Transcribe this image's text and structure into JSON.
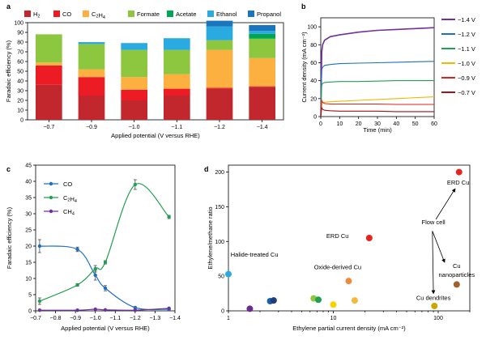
{
  "chart_data": [
    {
      "panel": "a",
      "type": "bar",
      "stacked": true,
      "categories": [
        "−0.7",
        "−0.9",
        "−1.0",
        "−1.1",
        "−1.2",
        "−1.4"
      ],
      "xlabel": "Applied potential (V versus RHE)",
      "ylabel": "Faradaic efficiency (%)",
      "ylim": [
        0,
        100
      ],
      "yticks": [
        0,
        10,
        20,
        30,
        40,
        50,
        60,
        70,
        80,
        90,
        100
      ],
      "legend_position": "top",
      "series": [
        {
          "name": "H",
          "sub": "2",
          "color": "#c1272d",
          "values": [
            36,
            25,
            20,
            25,
            32,
            34
          ]
        },
        {
          "name": "CO",
          "sub": "",
          "color": "#ed1c24",
          "values": [
            20,
            19,
            11,
            7,
            1,
            0.5
          ]
        },
        {
          "name": "C",
          "sub": "2",
          "name2": "H",
          "sub2": "4",
          "color": "#fbb040",
          "values": [
            3,
            8,
            13,
            15,
            39,
            29
          ]
        },
        {
          "name": "Formate",
          "sub": "",
          "color": "#8dc63f",
          "values": [
            29,
            26,
            28,
            25,
            10,
            20
          ]
        },
        {
          "name": "Acetate",
          "sub": "",
          "color": "#00a651",
          "values": [
            0,
            0,
            0,
            0,
            0,
            5
          ]
        },
        {
          "name": "Ethanol",
          "sub": "",
          "color": "#29abe2",
          "values": [
            0,
            2,
            7,
            12,
            14,
            3
          ]
        },
        {
          "name": "Propanol",
          "sub": "",
          "color": "#1b75bc",
          "values": [
            0,
            0,
            0,
            0,
            6,
            6
          ]
        }
      ]
    },
    {
      "panel": "b",
      "type": "line",
      "xlabel": "Time (min)",
      "ylabel": "Current density (mA cm⁻²)",
      "xlim": [
        0,
        60
      ],
      "ylim": [
        0,
        110
      ],
      "xticks": [
        0,
        10,
        20,
        30,
        40,
        50,
        60
      ],
      "yticks": [
        0,
        20,
        40,
        60,
        80,
        100
      ],
      "legend_position": "right",
      "series": [
        {
          "name": "−1.4 V",
          "color": "#7030a0",
          "t": [
            0,
            0.5,
            1,
            2,
            5,
            10,
            20,
            30,
            40,
            50,
            60
          ],
          "values": [
            0,
            72,
            80,
            85,
            89,
            91,
            94,
            96,
            97,
            98,
            99
          ]
        },
        {
          "name": "−1.2 V",
          "color": "#1f6fc0",
          "t": [
            0,
            0.5,
            1,
            2,
            5,
            10,
            20,
            30,
            40,
            50,
            60
          ],
          "values": [
            0,
            52,
            55,
            57,
            58,
            59,
            59.5,
            60,
            60.5,
            61,
            61.5
          ]
        },
        {
          "name": "−1.1 V",
          "color": "#20a050",
          "t": [
            0,
            0.5,
            1,
            2,
            5,
            10,
            20,
            30,
            40,
            50,
            60
          ],
          "values": [
            0,
            35,
            37,
            38,
            38.5,
            39,
            39,
            39.5,
            40,
            40,
            40
          ]
        },
        {
          "name": "−1.0 V",
          "color": "#f7b500",
          "t": [
            0,
            0.5,
            1,
            2,
            5,
            10,
            20,
            30,
            40,
            50,
            60
          ],
          "values": [
            0,
            14,
            15,
            16,
            16.5,
            17,
            18,
            19,
            20,
            21,
            22
          ]
        },
        {
          "name": "−0.9 V",
          "color": "#e0201a",
          "t": [
            0,
            0.5,
            1,
            2,
            5,
            10,
            20,
            30,
            40,
            50,
            60
          ],
          "values": [
            0,
            18,
            16,
            14.5,
            14,
            14,
            14,
            14,
            13.5,
            13.5,
            13.5
          ]
        },
        {
          "name": "−0.7 V",
          "color": "#a0131a",
          "t": [
            0,
            0.5,
            1,
            2,
            5,
            10,
            20,
            30,
            40,
            50,
            60
          ],
          "values": [
            0,
            10,
            8,
            7,
            6.5,
            6,
            6,
            6,
            5.5,
            5.5,
            5.5
          ]
        }
      ]
    },
    {
      "panel": "c",
      "type": "line",
      "xlabel": "Applied potential (V versus RHE)",
      "ylabel": "Faradaic efficiency (%)",
      "xlim": [
        -0.7,
        -1.4
      ],
      "ylim": [
        0,
        45
      ],
      "xticks": [
        -0.7,
        -0.8,
        -0.9,
        -1.0,
        -1.1,
        -1.2,
        -1.3,
        -1.4
      ],
      "xticklabels": [
        "−0.7",
        "−0.8",
        "−0.9",
        "−1.0",
        "−1.1",
        "−1.2",
        "−1.3",
        "−1.4"
      ],
      "yticks": [
        0,
        5,
        10,
        15,
        20,
        25,
        30,
        35,
        40,
        45
      ],
      "legend_position": "top-left",
      "series": [
        {
          "name": "CO",
          "sub": "",
          "color": "#1f6fc0",
          "x": [
            -0.72,
            -0.91,
            -1.0,
            -1.05,
            -1.2,
            -1.37
          ],
          "values": [
            20,
            19,
            11,
            7,
            1,
            0.5
          ],
          "err": [
            2,
            0.7,
            1.5,
            0.8,
            0.3,
            0.2
          ]
        },
        {
          "name": "C",
          "sub": "2",
          "name2": "H",
          "sub2": "4",
          "color": "#20a050",
          "x": [
            -0.72,
            -0.91,
            -1.0,
            -1.05,
            -1.2,
            -1.37
          ],
          "values": [
            3,
            8,
            13,
            15,
            39,
            29
          ],
          "err": [
            1,
            0.4,
            1,
            0.5,
            1.5,
            0.5
          ]
        },
        {
          "name": "CH",
          "sub": "4",
          "color": "#7030a0",
          "x": [
            -0.72,
            -0.91,
            -1.0,
            -1.05,
            -1.2,
            -1.37
          ],
          "values": [
            0.2,
            0.2,
            0.5,
            0.3,
            0.2,
            0.8
          ],
          "err": [
            0,
            0,
            0,
            0,
            0,
            0
          ]
        }
      ]
    },
    {
      "panel": "d",
      "type": "scatter",
      "xlabel": "Ethylene partial current density (mA cm⁻²)",
      "ylabel": "Ethylene/methane ratio",
      "xscale": "log",
      "xlim": [
        1,
        200
      ],
      "ylim": [
        0,
        210
      ],
      "xticks": [
        1,
        10,
        100
      ],
      "yticks": [
        0,
        50,
        100,
        150,
        200
      ],
      "points": [
        {
          "x": 158,
          "y": 200,
          "color": "#e52421"
        },
        {
          "x": 22,
          "y": 105,
          "color": "#e52421"
        },
        {
          "x": 1,
          "y": 53,
          "color": "#29abe2"
        },
        {
          "x": 14,
          "y": 43,
          "color": "#ef8c3a"
        },
        {
          "x": 150,
          "y": 38,
          "color": "#a0612a"
        },
        {
          "x": 6.5,
          "y": 18,
          "color": "#8dc63f"
        },
        {
          "x": 7.2,
          "y": 16,
          "color": "#20a050"
        },
        {
          "x": 16,
          "y": 15,
          "color": "#f7b83a"
        },
        {
          "x": 2.5,
          "y": 14,
          "color": "#1f5fa8"
        },
        {
          "x": 2.7,
          "y": 15,
          "color": "#1b3f7a"
        },
        {
          "x": 10,
          "y": 9,
          "color": "#f9d100"
        },
        {
          "x": 92,
          "y": 7,
          "color": "#c7a800"
        },
        {
          "x": 1.6,
          "y": 3,
          "color": "#6a2c91"
        }
      ],
      "annotations": [
        {
          "text": "ERD Cu",
          "x": 155,
          "y": 182
        },
        {
          "text": "ERD Cu",
          "x": 14,
          "y": 105
        },
        {
          "text": "Halide-treated Cu",
          "x": 1.05,
          "y": 78
        },
        {
          "text": "Oxide-derived Cu",
          "x": 11,
          "y": 60
        },
        {
          "text": "Flow cell",
          "x": 90,
          "y": 125
        },
        {
          "text": "Cu",
          "x": 150,
          "y": 62
        },
        {
          "text": "nanoparticles",
          "x": 150,
          "y": 49
        },
        {
          "text": "Cu dendrites",
          "x": 90,
          "y": 16
        }
      ]
    }
  ],
  "panel_labels": [
    "a",
    "b",
    "c",
    "d"
  ]
}
